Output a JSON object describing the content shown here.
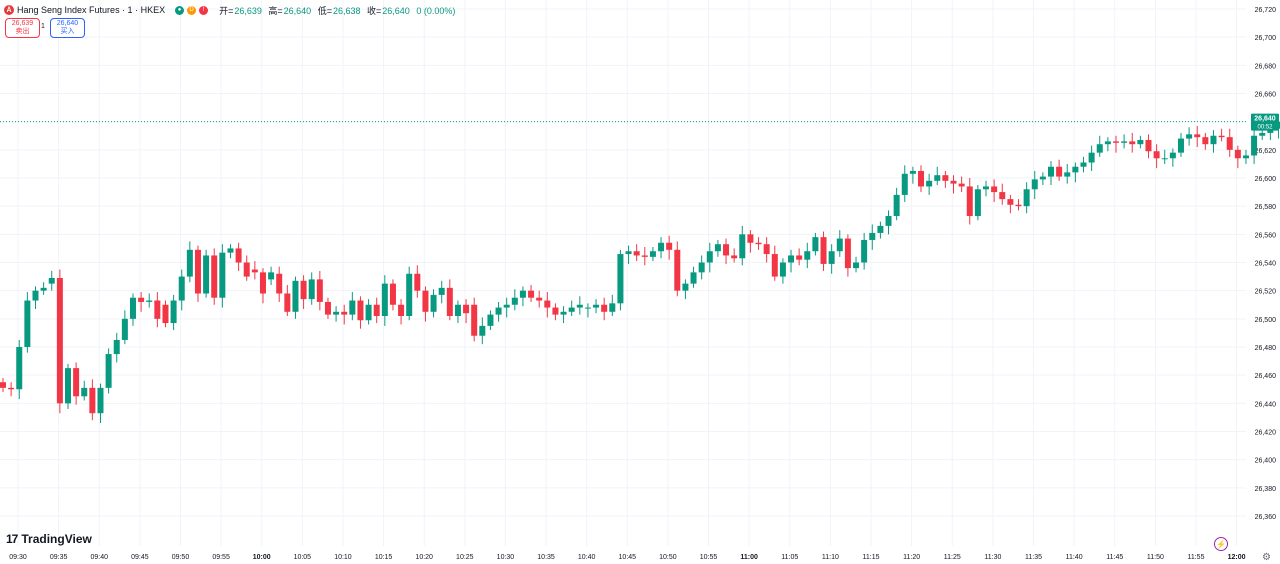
{
  "header": {
    "logo_letter": "Ä",
    "title": "Hang Seng Index Futures · 1 · HKEX",
    "badge_d": "D",
    "badge_excl": "!",
    "ohlc": [
      {
        "key": "开=",
        "value": "26,639"
      },
      {
        "key": "高=",
        "value": "26,640"
      },
      {
        "key": "低=",
        "value": "26,638"
      },
      {
        "key": "收=",
        "value": "26,640"
      },
      {
        "key": "",
        "value": "0 (0.00%)"
      }
    ]
  },
  "trade": {
    "sell_price": "26,639",
    "sell_label": "卖出",
    "spread": "1",
    "buy_price": "26,640",
    "buy_label": "买入"
  },
  "branding": {
    "logo_mark": "17",
    "logo_text": "TradingView"
  },
  "colors": {
    "up": "#089981",
    "down": "#f23645",
    "grid": "#f0f3fa",
    "text": "#131722",
    "price_line": "#089981"
  },
  "chart_data": {
    "type": "candlestick",
    "interval_minutes": 1,
    "price_axis": {
      "min": 26360,
      "max": 26720,
      "ticks": [
        "26,720",
        "26,700",
        "26,680",
        "26,660",
        "26,640",
        "26,620",
        "26,600",
        "26,580",
        "26,560",
        "26,540",
        "26,520",
        "26,500",
        "26,480",
        "26,460",
        "26,440",
        "26,420",
        "26,400",
        "26,380",
        "26,360"
      ]
    },
    "time_axis": {
      "ticks": [
        "09:30",
        "09:35",
        "09:40",
        "09:45",
        "09:50",
        "09:55",
        "10:00",
        "10:05",
        "10:10",
        "10:15",
        "10:20",
        "10:25",
        "10:30",
        "10:35",
        "10:40",
        "10:45",
        "10:50",
        "10:55",
        "11:00",
        "11:05",
        "11:10",
        "11:15",
        "11:20",
        "11:25",
        "11:30",
        "11:35",
        "11:40",
        "11:45",
        "11:50",
        "11:55",
        "12:00"
      ],
      "bold_ticks": [
        "10:00",
        "11:00",
        "12:00"
      ]
    },
    "last_price": {
      "value": 26640,
      "label": "26,640",
      "countdown": "00:52"
    },
    "candles_oc": [
      [
        26455,
        26451
      ],
      [
        26451,
        26450
      ],
      [
        26450,
        26480
      ],
      [
        26480,
        26513
      ],
      [
        26513,
        26520
      ],
      [
        26520,
        26522
      ],
      [
        26525,
        26529
      ],
      [
        26529,
        26440
      ],
      [
        26440,
        26465
      ],
      [
        26465,
        26445
      ],
      [
        26445,
        26451
      ],
      [
        26451,
        26433
      ],
      [
        26433,
        26451
      ],
      [
        26451,
        26475
      ],
      [
        26475,
        26485
      ],
      [
        26485,
        26500
      ],
      [
        26500,
        26515
      ],
      [
        26515,
        26512
      ],
      [
        26512,
        26513
      ],
      [
        26513,
        26500
      ],
      [
        26510,
        26497
      ],
      [
        26497,
        26513
      ],
      [
        26513,
        26530
      ],
      [
        26530,
        26549
      ],
      [
        26549,
        26518
      ],
      [
        26518,
        26545
      ],
      [
        26545,
        26515
      ],
      [
        26515,
        26547
      ],
      [
        26547,
        26550
      ],
      [
        26550,
        26540
      ],
      [
        26540,
        26530
      ],
      [
        26535,
        26533
      ],
      [
        26533,
        26518
      ],
      [
        26528,
        26533
      ],
      [
        26532,
        26518
      ],
      [
        26518,
        26505
      ],
      [
        26505,
        26527
      ],
      [
        26527,
        26514
      ],
      [
        26514,
        26528
      ],
      [
        26528,
        26512
      ],
      [
        26512,
        26503
      ],
      [
        26503,
        26505
      ],
      [
        26505,
        26503
      ],
      [
        26503,
        26513
      ],
      [
        26513,
        26499
      ],
      [
        26499,
        26510
      ],
      [
        26510,
        26502
      ],
      [
        26502,
        26525
      ],
      [
        26525,
        26510
      ],
      [
        26510,
        26502
      ],
      [
        26502,
        26532
      ],
      [
        26532,
        26520
      ],
      [
        26520,
        26505
      ],
      [
        26505,
        26517
      ],
      [
        26517,
        26522
      ],
      [
        26522,
        26502
      ],
      [
        26502,
        26510
      ],
      [
        26510,
        26504
      ],
      [
        26510,
        26488
      ],
      [
        26488,
        26495
      ],
      [
        26495,
        26503
      ],
      [
        26503,
        26508
      ],
      [
        26508,
        26510
      ],
      [
        26510,
        26515
      ],
      [
        26515,
        26520
      ],
      [
        26520,
        26515
      ],
      [
        26515,
        26513
      ],
      [
        26513,
        26508
      ],
      [
        26508,
        26503
      ],
      [
        26503,
        26505
      ],
      [
        26505,
        26508
      ],
      [
        26508,
        26510
      ],
      [
        26508,
        26508
      ],
      [
        26508,
        26510
      ],
      [
        26510,
        26505
      ],
      [
        26505,
        26511
      ],
      [
        26511,
        26546
      ],
      [
        26546,
        26548
      ],
      [
        26548,
        26545
      ],
      [
        26545,
        26544
      ],
      [
        26544,
        26548
      ],
      [
        26548,
        26554
      ],
      [
        26554,
        26549
      ],
      [
        26549,
        26520
      ],
      [
        26520,
        26525
      ],
      [
        26525,
        26533
      ],
      [
        26533,
        26540
      ],
      [
        26540,
        26548
      ],
      [
        26548,
        26553
      ],
      [
        26553,
        26545
      ],
      [
        26545,
        26543
      ],
      [
        26543,
        26560
      ],
      [
        26560,
        26554
      ],
      [
        26554,
        26553
      ],
      [
        26553,
        26546
      ],
      [
        26546,
        26530
      ],
      [
        26530,
        26540
      ],
      [
        26540,
        26545
      ],
      [
        26545,
        26542
      ],
      [
        26542,
        26548
      ],
      [
        26548,
        26558
      ],
      [
        26558,
        26539
      ],
      [
        26539,
        26548
      ],
      [
        26548,
        26557
      ],
      [
        26557,
        26536
      ],
      [
        26536,
        26540
      ],
      [
        26540,
        26556
      ],
      [
        26556,
        26561
      ],
      [
        26561,
        26566
      ],
      [
        26566,
        26573
      ],
      [
        26573,
        26588
      ],
      [
        26588,
        26603
      ],
      [
        26603,
        26605
      ],
      [
        26605,
        26594
      ],
      [
        26594,
        26598
      ],
      [
        26598,
        26602
      ],
      [
        26602,
        26598
      ],
      [
        26598,
        26596
      ],
      [
        26596,
        26594
      ],
      [
        26594,
        26573
      ],
      [
        26573,
        26592
      ],
      [
        26592,
        26594
      ],
      [
        26594,
        26590
      ],
      [
        26590,
        26585
      ],
      [
        26585,
        26581
      ],
      [
        26581,
        26580
      ],
      [
        26580,
        26592
      ],
      [
        26592,
        26599
      ],
      [
        26599,
        26601
      ],
      [
        26601,
        26608
      ],
      [
        26608,
        26601
      ],
      [
        26601,
        26604
      ],
      [
        26604,
        26608
      ],
      [
        26608,
        26611
      ],
      [
        26611,
        26618
      ],
      [
        26618,
        26624
      ],
      [
        26624,
        26626
      ],
      [
        26626,
        26625
      ],
      [
        26625,
        26626
      ],
      [
        26626,
        26624
      ],
      [
        26624,
        26627
      ],
      [
        26627,
        26619
      ],
      [
        26619,
        26614
      ],
      [
        26614,
        26614
      ],
      [
        26614,
        26618
      ],
      [
        26618,
        26628
      ],
      [
        26628,
        26631
      ],
      [
        26631,
        26629
      ],
      [
        26629,
        26624
      ],
      [
        26624,
        26630
      ],
      [
        26630,
        26629
      ],
      [
        26629,
        26620
      ],
      [
        26620,
        26614
      ],
      [
        26614,
        26616
      ],
      [
        26616,
        26630
      ],
      [
        26630,
        26632
      ],
      [
        26632,
        26635
      ],
      [
        26635,
        26640
      ],
      [
        26640,
        26643
      ],
      [
        26643,
        26647
      ],
      [
        26647,
        26650
      ],
      [
        26650,
        26645
      ],
      [
        26645,
        26646
      ],
      [
        26646,
        26648
      ],
      [
        26648,
        26643
      ],
      [
        26643,
        26646
      ],
      [
        26646,
        26642
      ],
      [
        26646,
        26632
      ],
      [
        26632,
        26632
      ],
      [
        26632,
        26635
      ],
      [
        26635,
        26634
      ],
      [
        26634,
        26633
      ],
      [
        26633,
        26634
      ],
      [
        26634,
        26634
      ],
      [
        26634,
        26640
      ],
      [
        26640,
        26639
      ],
      [
        26639,
        26640
      ]
    ]
  }
}
